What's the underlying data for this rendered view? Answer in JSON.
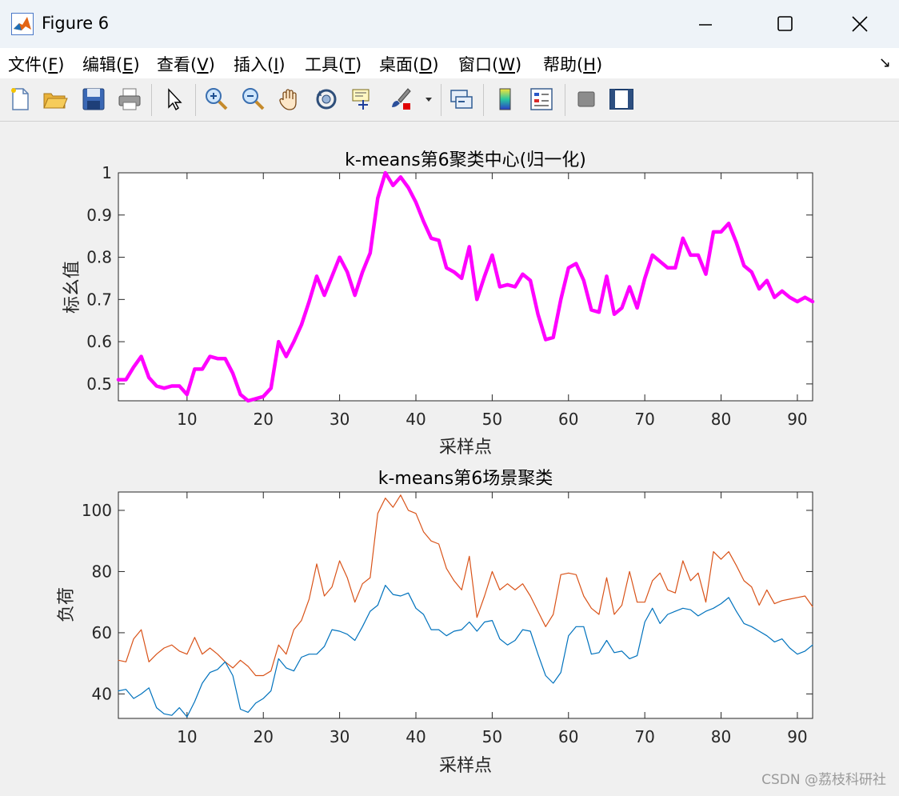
{
  "window": {
    "title": "Figure 6"
  },
  "menu": [
    {
      "text": "文件(",
      "key": "F",
      "end": ")"
    },
    {
      "text": "编辑(",
      "key": "E",
      "end": ")"
    },
    {
      "text": "查看(",
      "key": "V",
      "end": ")"
    },
    {
      "text": "插入(",
      "key": "I",
      "end": ")"
    },
    {
      "text": "工具(",
      "key": "T",
      "end": ")"
    },
    {
      "text": "桌面(",
      "key": "D",
      "end": ")"
    },
    {
      "text": "窗口(",
      "key": "W",
      "end": ")"
    },
    {
      "text": "帮助(",
      "key": "H",
      "end": ")"
    }
  ],
  "toolbar_icons": [
    "new-file-icon",
    "open-folder-icon",
    "save-icon",
    "print-icon",
    "pointer-icon",
    "zoom-in-icon",
    "zoom-out-icon",
    "pan-hand-icon",
    "rotate-3d-icon",
    "data-cursor-icon",
    "brush-icon",
    "link-plot-icon",
    "colorbar-icon",
    "legend-icon",
    "hide-plot-tools-icon",
    "show-plot-tools-icon"
  ],
  "colors": {
    "center": "#ff00ff",
    "series_blue": "#0072bd",
    "series_orange": "#d95319"
  },
  "chart_data": [
    {
      "type": "line",
      "title": "k-means第6聚类中心(归一化)",
      "xlabel": "采样点",
      "ylabel": "标幺值",
      "xlim": [
        1,
        92
      ],
      "ylim": [
        0.46,
        1.0
      ],
      "xticks": [
        10,
        20,
        30,
        40,
        50,
        60,
        70,
        80,
        90
      ],
      "yticks": [
        0.5,
        0.6,
        0.7,
        0.8,
        0.9,
        1
      ],
      "ytick_labels": [
        "0.5",
        "0.6",
        "0.7",
        "0.8",
        "0.9",
        "1"
      ],
      "series": [
        {
          "values": [
            0.51,
            0.51,
            0.54,
            0.565,
            0.515,
            0.495,
            0.49,
            0.495,
            0.495,
            0.475,
            0.535,
            0.535,
            0.565,
            0.56,
            0.56,
            0.525,
            0.475,
            0.46,
            0.465,
            0.47,
            0.49,
            0.6,
            0.565,
            0.6,
            0.64,
            0.695,
            0.755,
            0.71,
            0.755,
            0.8,
            0.765,
            0.71,
            0.765,
            0.81,
            0.94,
            1.0,
            0.97,
            0.99,
            0.965,
            0.93,
            0.885,
            0.845,
            0.84,
            0.775,
            0.765,
            0.75,
            0.825,
            0.7,
            0.755,
            0.805,
            0.73,
            0.735,
            0.73,
            0.76,
            0.745,
            0.665,
            0.605,
            0.61,
            0.7,
            0.775,
            0.785,
            0.745,
            0.675,
            0.67,
            0.755,
            0.665,
            0.68,
            0.73,
            0.68,
            0.75,
            0.805,
            0.79,
            0.775,
            0.775,
            0.845,
            0.805,
            0.805,
            0.76,
            0.86,
            0.86,
            0.88,
            0.835,
            0.78,
            0.765,
            0.725,
            0.745,
            0.705,
            0.72,
            0.705,
            0.695,
            0.705,
            0.695
          ]
        }
      ]
    },
    {
      "type": "line",
      "title": "k-means第6场景聚类",
      "xlabel": "采样点",
      "ylabel": "负荷",
      "xlim": [
        1,
        92
      ],
      "ylim": [
        32,
        106
      ],
      "xticks": [
        10,
        20,
        30,
        40,
        50,
        60,
        70,
        80,
        90
      ],
      "yticks": [
        40,
        60,
        80,
        100
      ],
      "ytick_labels": [
        "40",
        "60",
        "80",
        "100"
      ],
      "series": [
        {
          "color": "#d95319",
          "values": [
            51,
            50.5,
            58,
            61,
            50.5,
            53,
            55,
            56,
            54,
            53,
            58.5,
            53,
            55,
            53,
            50.5,
            48.5,
            51,
            49,
            46,
            46,
            47.5,
            56,
            53,
            61,
            64,
            71,
            82.5,
            72,
            75,
            83.5,
            78,
            70,
            76,
            78,
            99,
            104,
            101,
            105,
            100,
            99,
            93,
            90,
            89,
            81,
            77,
            74,
            85,
            65,
            72,
            80,
            74,
            76,
            74,
            76,
            72,
            67,
            62,
            66,
            79,
            79.5,
            79,
            72,
            68,
            66,
            78,
            66,
            69,
            80,
            70,
            70,
            77,
            79.5,
            74,
            73,
            83.5,
            77,
            79.5,
            70,
            86.5,
            84,
            86.5,
            82,
            77,
            75,
            69,
            74,
            69.5,
            70.5,
            71,
            71.5,
            72,
            68.5
          ]
        },
        {
          "color": "#0072bd",
          "values": [
            41,
            41.5,
            38.5,
            40,
            42,
            35.5,
            33.5,
            33,
            35.5,
            32.5,
            37.5,
            43.5,
            47,
            48,
            50.5,
            46,
            35,
            34,
            37,
            38.5,
            41,
            51.5,
            48.5,
            47.5,
            52,
            53,
            53,
            55.5,
            61,
            60.5,
            59.5,
            57.5,
            62,
            67,
            69,
            75.5,
            72.5,
            72,
            73,
            68,
            66,
            61,
            61,
            59,
            60.5,
            61,
            63.5,
            60.5,
            63.5,
            64,
            58,
            56,
            57.5,
            61,
            60.5,
            53,
            46,
            43.5,
            47,
            59,
            62,
            62,
            53,
            53.5,
            57.5,
            53.5,
            54,
            51.5,
            52.5,
            63.5,
            68,
            63,
            66,
            67,
            68,
            67.5,
            65.5,
            67,
            68,
            69.5,
            71.5,
            67,
            63,
            62,
            60.5,
            59,
            57,
            58,
            55,
            53,
            54,
            56
          ]
        }
      ]
    }
  ],
  "watermark": "CSDN @荔枝科研社"
}
